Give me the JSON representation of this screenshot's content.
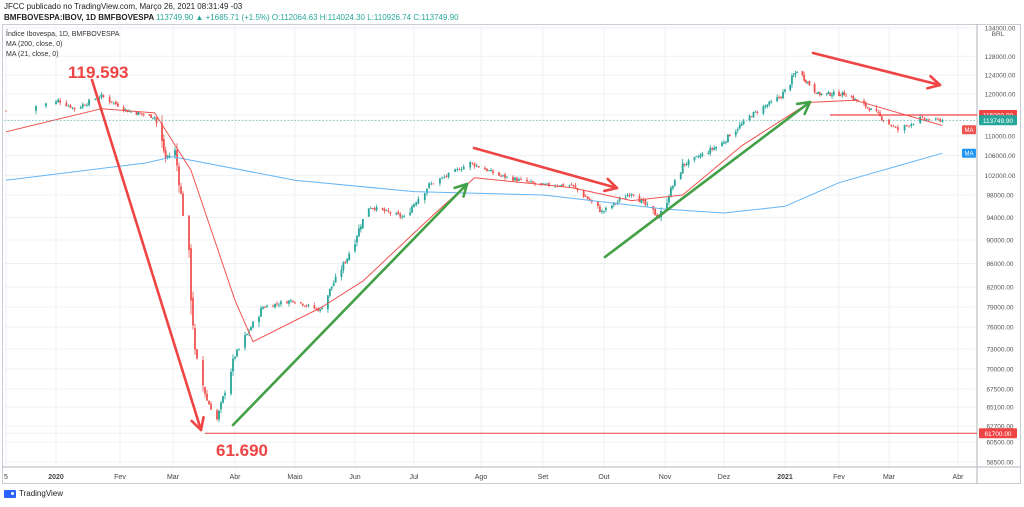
{
  "header": {
    "published": "JFCC publicado no TradingView.com, Março 26, 2021 08:31:49 -03",
    "symbol": "BMFBOVESPA:IBOV, 1D BMFBOVESPA",
    "ohlc": "113749.90 ▲ +1685.71 (+1.5%) O:112064.63 H:114024.30 L:110926.74 C:113749.90"
  },
  "legend": {
    "title": "Índice Ibovespa, 1D, BMFBOVESPA",
    "ma200": "MA (200, close, 0)",
    "ma21": "MA (21, close, 0)"
  },
  "footer": {
    "brand": "TradingView"
  },
  "colors": {
    "up": "#26a69a",
    "down": "#ef5350",
    "ma200": "#64b5f6",
    "ma21": "#ef5350",
    "annotation_red": "#ef4444",
    "annotation_green": "#43a047",
    "ma_badge": "#2196f3"
  },
  "chart_data": {
    "type": "candlestick",
    "currency": "BRL",
    "x_ticks": [
      "5",
      "2020",
      "Fev",
      "Mar",
      "Abr",
      "Maio",
      "Jun",
      "Jul",
      "Ago",
      "Set",
      "Out",
      "Nov",
      "Dez",
      "2021",
      "Fev",
      "Mar",
      "Abr"
    ],
    "y_ticks": [
      134000,
      128000,
      124000,
      120000,
      115000,
      113749.9,
      110000,
      106000,
      102000,
      98000,
      94000,
      90000,
      86000,
      82000,
      79000,
      76000,
      73000,
      70000,
      67500,
      65100,
      62700,
      61700,
      60500,
      58500
    ],
    "price_labels": [
      {
        "text": "115000.00",
        "value": 115000
      },
      {
        "text": "113749.90",
        "value": 113749.9
      },
      {
        "text": "61700.00",
        "value": 61700
      }
    ],
    "ma_badges": [
      {
        "text": "MA",
        "value": 111500,
        "color": "#ef5350"
      },
      {
        "text": "MA",
        "value": 106500,
        "color": "#2196f3"
      }
    ],
    "annotations": [
      {
        "text": "119.593"
      },
      {
        "text": "61.690"
      }
    ],
    "horizontal_lines": [
      115000,
      61700
    ],
    "close_path": [
      [
        "2019-12-27",
        116000
      ],
      [
        "2020-01-02",
        118500
      ],
      [
        "2020-01-10",
        116500
      ],
      [
        "2020-01-23",
        119500
      ],
      [
        "2020-02-05",
        116000
      ],
      [
        "2020-02-20",
        114500
      ],
      [
        "2020-02-26",
        105500
      ],
      [
        "2020-03-02",
        107000
      ],
      [
        "2020-03-09",
        86000
      ],
      [
        "2020-03-12",
        72000
      ],
      [
        "2020-03-18",
        66000
      ],
      [
        "2020-03-23",
        63500
      ],
      [
        "2020-04-01",
        72000
      ],
      [
        "2020-04-15",
        79000
      ],
      [
        "2020-04-30",
        80000
      ],
      [
        "2020-05-14",
        78500
      ],
      [
        "2020-05-28",
        87000
      ],
      [
        "2020-06-08",
        96000
      ],
      [
        "2020-06-26",
        94000
      ],
      [
        "2020-07-08",
        100000
      ],
      [
        "2020-07-27",
        104500
      ],
      [
        "2020-08-10",
        102000
      ],
      [
        "2020-08-31",
        100000
      ],
      [
        "2020-09-15",
        100000
      ],
      [
        "2020-09-30",
        95000
      ],
      [
        "2020-10-15",
        98500
      ],
      [
        "2020-10-29",
        94000
      ],
      [
        "2020-11-10",
        104000
      ],
      [
        "2020-11-30",
        108500
      ],
      [
        "2020-12-15",
        115000
      ],
      [
        "2020-12-30",
        119500
      ],
      [
        "2021-01-08",
        125000
      ],
      [
        "2021-01-20",
        120000
      ],
      [
        "2021-02-05",
        120000
      ],
      [
        "2021-02-20",
        116000
      ],
      [
        "2021-03-05",
        111500
      ],
      [
        "2021-03-15",
        114000
      ],
      [
        "2021-03-25",
        113749.9
      ]
    ],
    "ma200": [
      [
        "2019-12-27",
        101000
      ],
      [
        "2020-02-15",
        104500
      ],
      [
        "2020-03-01",
        105800
      ],
      [
        "2020-05-01",
        101000
      ],
      [
        "2020-07-01",
        98700
      ],
      [
        "2020-09-01",
        98000
      ],
      [
        "2020-11-01",
        95500
      ],
      [
        "2020-12-01",
        94800
      ],
      [
        "2021-01-01",
        96000
      ],
      [
        "2021-02-01",
        100500
      ],
      [
        "2021-03-25",
        106500
      ]
    ],
    "ma21": [
      [
        "2019-12-27",
        111000
      ],
      [
        "2020-01-23",
        116500
      ],
      [
        "2020-02-20",
        115500
      ],
      [
        "2020-03-10",
        103000
      ],
      [
        "2020-04-01",
        80000
      ],
      [
        "2020-04-10",
        74000
      ],
      [
        "2020-05-15",
        79000
      ],
      [
        "2020-06-05",
        83000
      ],
      [
        "2020-07-10",
        94500
      ],
      [
        "2020-07-29",
        101500
      ],
      [
        "2020-09-15",
        99500
      ],
      [
        "2020-10-15",
        97000
      ],
      [
        "2020-11-10",
        98000
      ],
      [
        "2020-12-10",
        108000
      ],
      [
        "2021-01-15",
        118000
      ],
      [
        "2021-02-10",
        118500
      ],
      [
        "2021-03-25",
        112500
      ]
    ]
  }
}
